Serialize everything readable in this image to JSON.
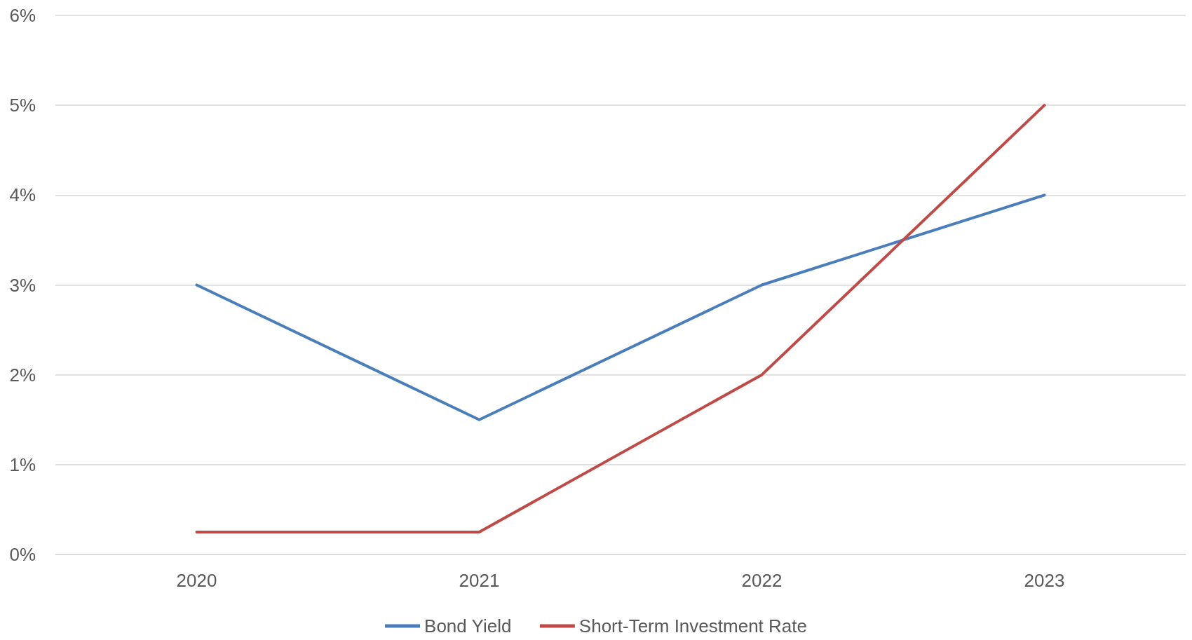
{
  "chart_data": {
    "type": "line",
    "categories": [
      "2020",
      "2021",
      "2022",
      "2023"
    ],
    "series": [
      {
        "name": "Bond Yield",
        "color": "#4a7ebb",
        "values": [
          3,
          1.5,
          3,
          4
        ]
      },
      {
        "name": "Short-Term Investment Rate",
        "color": "#be4b48",
        "values": [
          0.25,
          0.25,
          2,
          5
        ]
      }
    ],
    "ylim": [
      0,
      6
    ],
    "yticks": [
      {
        "value": 0,
        "label": "0%"
      },
      {
        "value": 1,
        "label": "1%"
      },
      {
        "value": 2,
        "label": "2%"
      },
      {
        "value": 3,
        "label": "3%"
      },
      {
        "value": 4,
        "label": "4%"
      },
      {
        "value": 5,
        "label": "5%"
      },
      {
        "value": 6,
        "label": "6%"
      }
    ],
    "grid": "y",
    "legend": "bottom",
    "marker": "none",
    "line_style": "solid"
  }
}
